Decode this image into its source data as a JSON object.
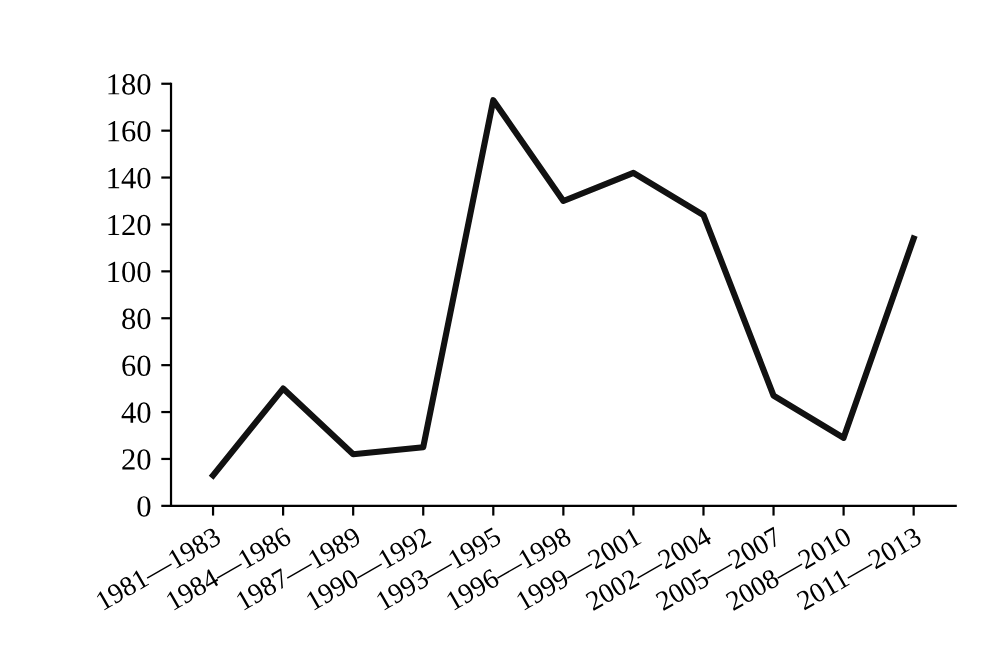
{
  "chart_data": {
    "type": "line",
    "categories": [
      "1981—1983",
      "1984—1986",
      "1987—1989",
      "1990—1992",
      "1993—1995",
      "1996—1998",
      "1999—2001",
      "2002—2004",
      "2005—2007",
      "2008—2010",
      "2011—2013"
    ],
    "series": [
      {
        "color": "#111111",
        "values": [
          13,
          50,
          22,
          25,
          173,
          130,
          142,
          124,
          47,
          29,
          114
        ]
      }
    ],
    "ylim": [
      0,
      180
    ],
    "yticks": [
      0,
      20,
      40,
      60,
      80,
      100,
      120,
      140,
      160,
      180
    ],
    "grid": false,
    "legend": false,
    "marker": "none",
    "line_style": "solid"
  }
}
